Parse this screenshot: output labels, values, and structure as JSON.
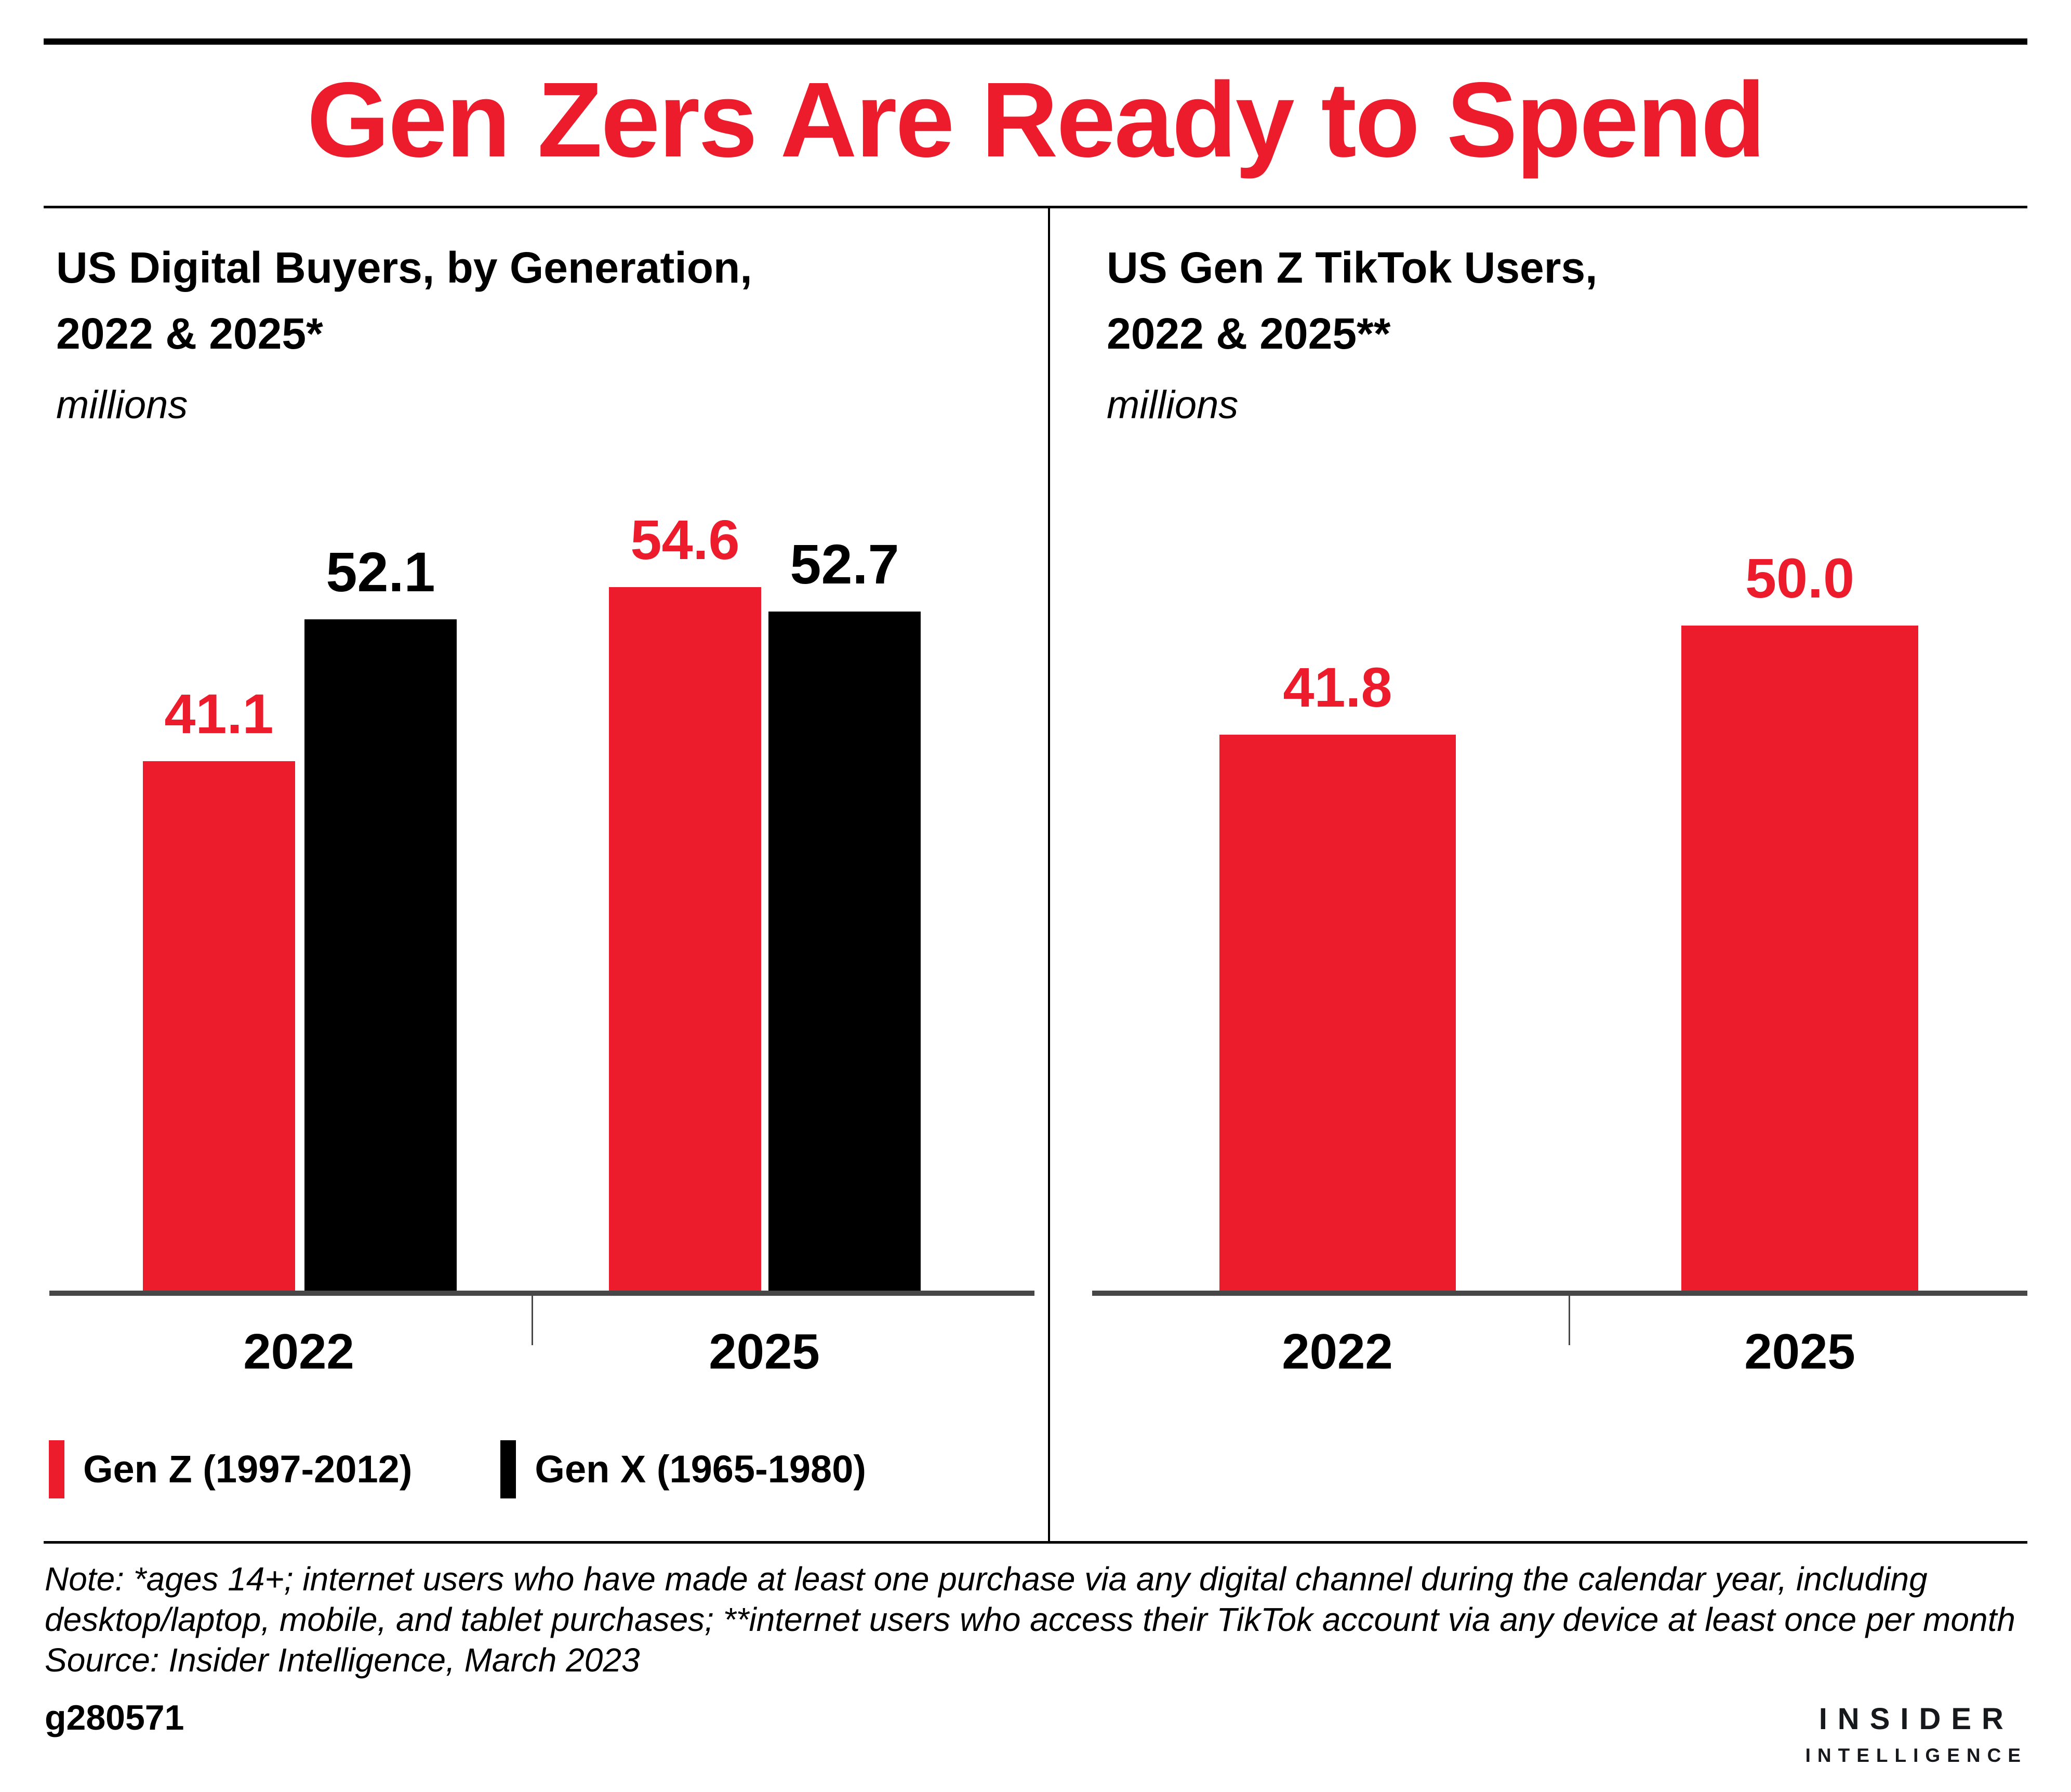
{
  "page": {
    "title": "Gen Zers Are Ready to Spend",
    "footer_id": "g280571",
    "logo": {
      "line1": "INSIDER",
      "line2": "INTELLIGENCE"
    },
    "note_lines": [
      "Note: *ages 14+; internet users who have made at least one purchase via any digital channel during the calendar year, including",
      "desktop/laptop, mobile, and tablet purchases; **internet users who access their TikTok account via any device at least once per month",
      "Source: Insider Intelligence, March 2023"
    ],
    "colors": {
      "accent_red": "#ec1c2d",
      "bar_black": "#000000",
      "axis_gray": "#474747"
    }
  },
  "chart_data": [
    {
      "type": "bar",
      "title_lines": [
        "US Digital Buyers, by Generation,",
        "2022 & 2025*"
      ],
      "unit": "millions",
      "categories": [
        "2022",
        "2025"
      ],
      "series": [
        {
          "name": "Gen Z (1997-2012)",
          "color": "#ec1c2d",
          "values": [
            41.1,
            54.6
          ]
        },
        {
          "name": "Gen X (1965-1980)",
          "color": "#000000",
          "values": [
            52.1,
            52.7
          ]
        }
      ],
      "legend_position": "bottom-left",
      "grid": false,
      "value_labels": true
    },
    {
      "type": "bar",
      "title_lines": [
        "US Gen Z TikTok Users,",
        "2022 & 2025**"
      ],
      "unit": "millions",
      "categories": [
        "2022",
        "2025"
      ],
      "series": [
        {
          "name": "Gen Z (1997-2012)",
          "color": "#ec1c2d",
          "values": [
            41.8,
            50.0
          ]
        }
      ],
      "legend_position": "none",
      "grid": false,
      "value_labels": true
    }
  ]
}
